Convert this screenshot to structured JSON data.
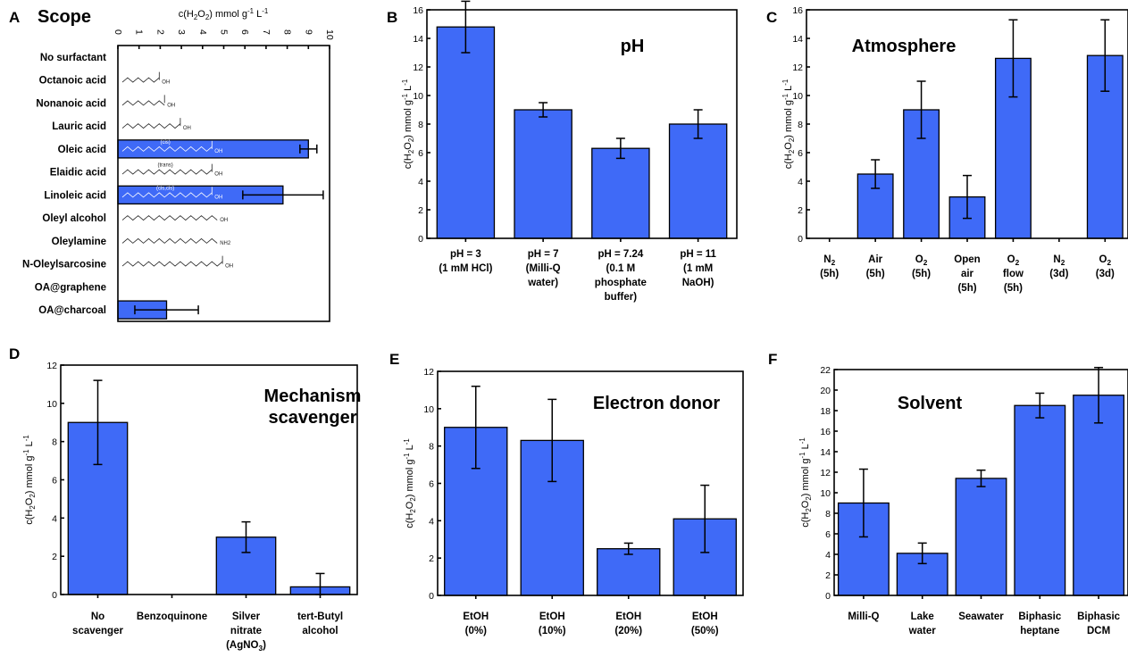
{
  "chart_data": [
    {
      "panel": "A",
      "type": "bar",
      "title": "Scope",
      "orientation": "horizontal",
      "xlabel": "c(H2O2) mmol g-1 L-1",
      "xlim": [
        0,
        10
      ],
      "ticks": [
        "0",
        "1",
        "2",
        "3",
        "4",
        "5",
        "6",
        "7",
        "8",
        "9",
        "10"
      ],
      "categories": [
        "No surfactant",
        "Octanoic acid",
        "Nonanoic acid",
        "Lauric acid",
        "Oleic acid",
        "Elaidic acid",
        "Linoleic acid",
        "Oleyl alcohol",
        "Oleylamine",
        "N-Oleylsarcosine",
        "OA@graphene",
        "OA@charcoal"
      ],
      "values": [
        0,
        0,
        0,
        0,
        9.0,
        0,
        7.8,
        0,
        0,
        0,
        0,
        2.3
      ],
      "errors": [
        0,
        0,
        0,
        0,
        0.4,
        0,
        1.9,
        0,
        0,
        0,
        0,
        1.5
      ],
      "annotations": [
        "(cis)",
        "(trans)",
        "(cis,cis)",
        "OH",
        "NH2"
      ]
    },
    {
      "panel": "B",
      "type": "bar",
      "title": "pH",
      "ylabel": "c(H2O2) mmol g-1 L-1",
      "ylim": [
        0,
        16
      ],
      "ticks": [
        "0",
        "2",
        "4",
        "6",
        "8",
        "10",
        "12",
        "14",
        "16"
      ],
      "categories": [
        [
          "pH = 3",
          "(1 mM HCl)"
        ],
        [
          "pH = 7",
          "(Milli-Q",
          "water)"
        ],
        [
          "pH = 7.24",
          "(0.1 M",
          "phosphate",
          "buffer)"
        ],
        [
          "pH = 11",
          "(1 mM",
          "NaOH)"
        ]
      ],
      "values": [
        14.8,
        9.0,
        6.3,
        8.0
      ],
      "errors": [
        1.8,
        0.5,
        0.7,
        1.0
      ]
    },
    {
      "panel": "C",
      "type": "bar",
      "title": "Atmosphere",
      "ylabel": "c(H2O2) mmol g-1 L-1",
      "ylim": [
        0,
        16
      ],
      "ticks": [
        "0",
        "2",
        "4",
        "6",
        "8",
        "10",
        "12",
        "14",
        "16"
      ],
      "categories": [
        [
          "N2",
          "(5h)"
        ],
        [
          "Air",
          "(5h)"
        ],
        [
          "O2",
          "(5h)"
        ],
        [
          "Open",
          "air",
          "(5h)"
        ],
        [
          "O2",
          "flow",
          "(5h)"
        ],
        [
          "N2",
          "(3d)"
        ],
        [
          "O2",
          "(3d)"
        ]
      ],
      "values": [
        0,
        4.5,
        9.0,
        2.9,
        12.6,
        0,
        12.8
      ],
      "errors": [
        0,
        1.0,
        2.0,
        1.5,
        2.7,
        0,
        2.5
      ]
    },
    {
      "panel": "D",
      "type": "bar",
      "title": "Mechanism scavenger",
      "ylabel": "c(H2O2) mmol g-1 L-1",
      "ylim": [
        0,
        12
      ],
      "ticks": [
        "0",
        "2",
        "4",
        "6",
        "8",
        "10",
        "12"
      ],
      "categories": [
        [
          "No",
          "scavenger"
        ],
        [
          "Benzoquinone"
        ],
        [
          "Silver",
          "nitrate",
          "(AgNO3)"
        ],
        [
          "tert-Butyl",
          "alcohol"
        ]
      ],
      "values": [
        9.0,
        0,
        3.0,
        0.4
      ],
      "errors": [
        2.2,
        0,
        0.8,
        0.7
      ]
    },
    {
      "panel": "E",
      "type": "bar",
      "title": "Electron donor",
      "ylabel": "c(H2O2) mmol g-1 L-1",
      "ylim": [
        0,
        12
      ],
      "ticks": [
        "0",
        "2",
        "4",
        "6",
        "8",
        "10",
        "12"
      ],
      "categories": [
        [
          "EtOH",
          "(0%)"
        ],
        [
          "EtOH",
          "(10%)"
        ],
        [
          "EtOH",
          "(20%)"
        ],
        [
          "EtOH",
          "(50%)"
        ]
      ],
      "values": [
        9.0,
        8.3,
        2.5,
        4.1
      ],
      "errors": [
        2.2,
        2.2,
        0.3,
        1.8
      ]
    },
    {
      "panel": "F",
      "type": "bar",
      "title": "Solvent",
      "ylabel": "c(H2O2) mmol g-1 L-1",
      "ylim": [
        0,
        22
      ],
      "ticks": [
        "0",
        "2",
        "4",
        "6",
        "8",
        "10",
        "12",
        "14",
        "16",
        "18",
        "20",
        "22"
      ],
      "categories": [
        [
          "Milli-Q"
        ],
        [
          "Lake",
          "water"
        ],
        [
          "Seawater"
        ],
        [
          "Biphasic",
          "heptane"
        ],
        [
          "Biphasic",
          "DCM"
        ]
      ],
      "values": [
        9.0,
        4.1,
        11.4,
        18.5,
        19.5
      ],
      "errors": [
        3.3,
        1.0,
        0.8,
        1.2,
        2.7
      ]
    }
  ]
}
